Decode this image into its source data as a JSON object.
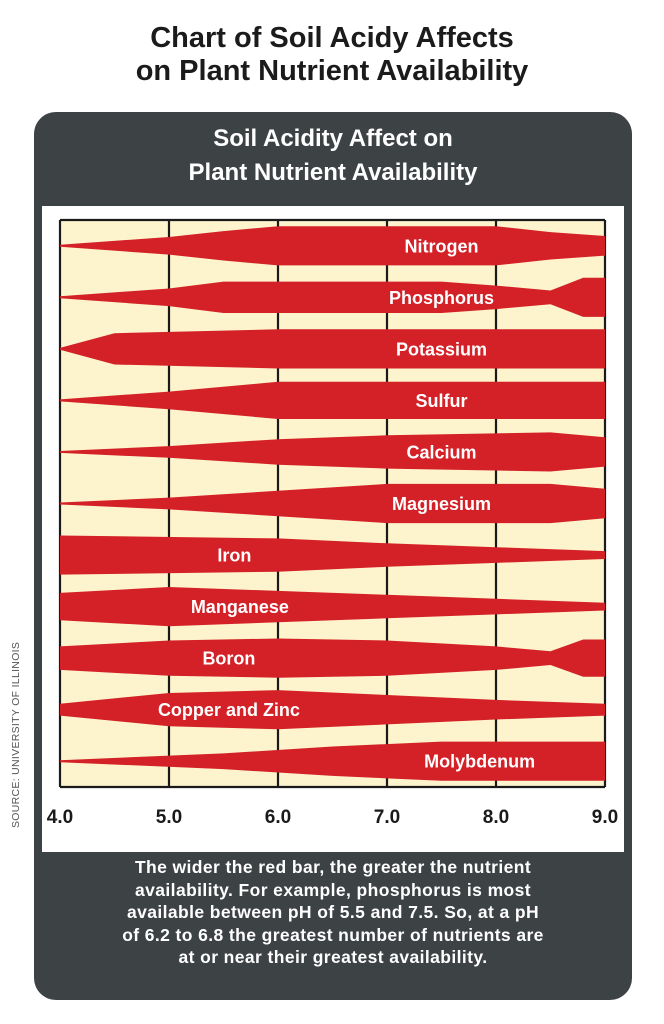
{
  "page_title": [
    "Chart of Soil Acidy Affects",
    "on Plant Nutrient Availability"
  ],
  "card_title": [
    "Soil Acidity Affect on",
    "Plant Nutrient Availability"
  ],
  "source": "SOURCE: UNIVERSITY OF ILLINOIS",
  "caption": [
    "The wider the red bar, the greater the nutrient",
    "availability.  For example, phosphorus is most",
    "available between pH of 5.5 and 7.5.  So, at a pH",
    "of 6.2 to 6.8 the greatest number of nutrients are",
    "at or near their greatest availability."
  ],
  "colors": {
    "bar": "#d42027",
    "plot_background": "#fdf3cc",
    "grid": "#1a1a1a",
    "card": "#3d4245",
    "tick_text": "#1a1a1a"
  },
  "chart_data": {
    "type": "area",
    "title": "Soil Acidity Affect on Plant Nutrient Availability",
    "xlabel": "",
    "ylabel": "",
    "xlim": [
      4.0,
      9.0
    ],
    "x_ticks": [
      "4.0",
      "5.0",
      "6.0",
      "7.0",
      "8.0",
      "9.0"
    ],
    "grid": true,
    "value_meaning": "relative availability (bar width), 0-1",
    "series": [
      {
        "name": "Nitrogen",
        "label_x": 7.5,
        "profile": [
          [
            4.0,
            0.05
          ],
          [
            5.0,
            0.45
          ],
          [
            5.5,
            0.75
          ],
          [
            6.0,
            1.0
          ],
          [
            8.0,
            1.0
          ],
          [
            8.5,
            0.7
          ],
          [
            9.0,
            0.5
          ]
        ]
      },
      {
        "name": "Phosphorus",
        "label_x": 7.5,
        "profile": [
          [
            4.0,
            0.05
          ],
          [
            5.0,
            0.45
          ],
          [
            5.5,
            0.8
          ],
          [
            7.5,
            0.8
          ],
          [
            8.0,
            0.6
          ],
          [
            8.5,
            0.35
          ],
          [
            8.8,
            1.0
          ],
          [
            9.0,
            1.0
          ]
        ]
      },
      {
        "name": "Potassium",
        "label_x": 7.5,
        "profile": [
          [
            4.0,
            0.05
          ],
          [
            4.5,
            0.8
          ],
          [
            6.0,
            1.0
          ],
          [
            9.0,
            1.0
          ]
        ]
      },
      {
        "name": "Sulfur",
        "label_x": 7.5,
        "profile": [
          [
            4.0,
            0.05
          ],
          [
            5.0,
            0.45
          ],
          [
            6.0,
            0.95
          ],
          [
            9.0,
            0.95
          ]
        ]
      },
      {
        "name": "Calcium",
        "label_x": 7.5,
        "profile": [
          [
            4.0,
            0.05
          ],
          [
            5.0,
            0.3
          ],
          [
            6.0,
            0.65
          ],
          [
            7.0,
            0.85
          ],
          [
            8.5,
            1.0
          ],
          [
            9.0,
            0.75
          ]
        ]
      },
      {
        "name": "Magnesium",
        "label_x": 7.5,
        "profile": [
          [
            4.0,
            0.05
          ],
          [
            5.0,
            0.3
          ],
          [
            6.0,
            0.65
          ],
          [
            7.0,
            1.0
          ],
          [
            8.5,
            1.0
          ],
          [
            9.0,
            0.75
          ]
        ]
      },
      {
        "name": "Iron",
        "label_x": 5.6,
        "profile": [
          [
            4.0,
            1.0
          ],
          [
            6.0,
            0.85
          ],
          [
            7.0,
            0.6
          ],
          [
            8.0,
            0.4
          ],
          [
            9.0,
            0.2
          ]
        ]
      },
      {
        "name": "Manganese",
        "label_x": 5.65,
        "profile": [
          [
            4.0,
            0.7
          ],
          [
            5.0,
            1.0
          ],
          [
            6.0,
            0.8
          ],
          [
            7.0,
            0.6
          ],
          [
            8.0,
            0.4
          ],
          [
            9.0,
            0.2
          ]
        ]
      },
      {
        "name": "Boron",
        "label_x": 5.55,
        "profile": [
          [
            4.0,
            0.6
          ],
          [
            5.0,
            0.9
          ],
          [
            6.0,
            1.0
          ],
          [
            7.0,
            0.9
          ],
          [
            8.0,
            0.6
          ],
          [
            8.5,
            0.35
          ],
          [
            8.8,
            0.95
          ],
          [
            9.0,
            0.95
          ]
        ]
      },
      {
        "name": "Copper and Zinc",
        "label_x": 5.55,
        "profile": [
          [
            4.0,
            0.3
          ],
          [
            5.0,
            0.85
          ],
          [
            6.0,
            1.0
          ],
          [
            7.0,
            0.75
          ],
          [
            8.0,
            0.5
          ],
          [
            9.0,
            0.3
          ]
        ]
      },
      {
        "name": "Molybdenum",
        "label_x": 7.85,
        "profile": [
          [
            4.0,
            0.05
          ],
          [
            5.5,
            0.4
          ],
          [
            6.5,
            0.75
          ],
          [
            7.5,
            1.0
          ],
          [
            9.0,
            1.0
          ]
        ]
      }
    ]
  }
}
